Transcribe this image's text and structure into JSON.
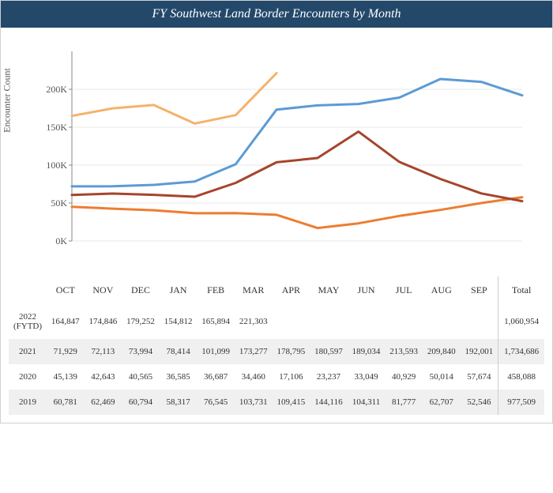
{
  "title": "FY Southwest Land Border Encounters by Month",
  "y_axis_label": "Encounter Count",
  "total_label": "Total",
  "chart": {
    "type": "line",
    "background_color": "#ffffff",
    "title_bg": "#23486a",
    "title_color": "#ffffff",
    "grid_color": "#e8e8e8",
    "axis_color": "#888888",
    "text_color": "#555555",
    "ylim": [
      0,
      250000
    ],
    "yticks": [
      0,
      50000,
      100000,
      150000,
      200000
    ],
    "ytick_labels": [
      "0K",
      "50K",
      "100K",
      "150K",
      "200K"
    ],
    "categories": [
      "OCT",
      "NOV",
      "DEC",
      "JAN",
      "FEB",
      "MAR",
      "APR",
      "MAY",
      "JUN",
      "JUL",
      "AUG",
      "SEP"
    ],
    "series": [
      {
        "name": "2022",
        "color": "#f5b26b",
        "width": 3,
        "values": [
          164847,
          174846,
          179252,
          154812,
          165894,
          221303,
          null,
          null,
          null,
          null,
          null,
          null
        ]
      },
      {
        "name": "2021",
        "color": "#5b9bd5",
        "width": 3,
        "values": [
          71929,
          72113,
          73994,
          78414,
          101099,
          173277,
          178795,
          180597,
          189034,
          213593,
          209840,
          192001
        ]
      },
      {
        "name": "2020",
        "color": "#ed7d31",
        "width": 3,
        "values": [
          45139,
          42643,
          40565,
          36585,
          36687,
          34460,
          17106,
          23237,
          33049,
          40929,
          50014,
          57674
        ]
      },
      {
        "name": "2019",
        "color": "#a5452b",
        "width": 3,
        "values": [
          60781,
          62469,
          60794,
          58317,
          76545,
          103731,
          109415,
          144116,
          104311,
          81777,
          62707,
          52546
        ]
      }
    ]
  },
  "table": {
    "columns": [
      "OCT",
      "NOV",
      "DEC",
      "JAN",
      "FEB",
      "MAR",
      "APR",
      "MAY",
      "JUN",
      "JUL",
      "AUG",
      "SEP"
    ],
    "rows": [
      {
        "label": "2022 (FYTD)",
        "values": [
          "164,847",
          "174,846",
          "179,252",
          "154,812",
          "165,894",
          "221,303",
          "",
          "",
          "",
          "",
          "",
          ""
        ],
        "total": "1,060,954"
      },
      {
        "label": "2021",
        "values": [
          "71,929",
          "72,113",
          "73,994",
          "78,414",
          "101,099",
          "173,277",
          "178,795",
          "180,597",
          "189,034",
          "213,593",
          "209,840",
          "192,001"
        ],
        "total": "1,734,686"
      },
      {
        "label": "2020",
        "values": [
          "45,139",
          "42,643",
          "40,565",
          "36,585",
          "36,687",
          "34,460",
          "17,106",
          "23,237",
          "33,049",
          "40,929",
          "50,014",
          "57,674"
        ],
        "total": "458,088"
      },
      {
        "label": "2019",
        "values": [
          "60,781",
          "62,469",
          "60,794",
          "58,317",
          "76,545",
          "103,731",
          "109,415",
          "144,116",
          "104,311",
          "81,777",
          "62,707",
          "52,546"
        ],
        "total": "977,509"
      }
    ]
  }
}
